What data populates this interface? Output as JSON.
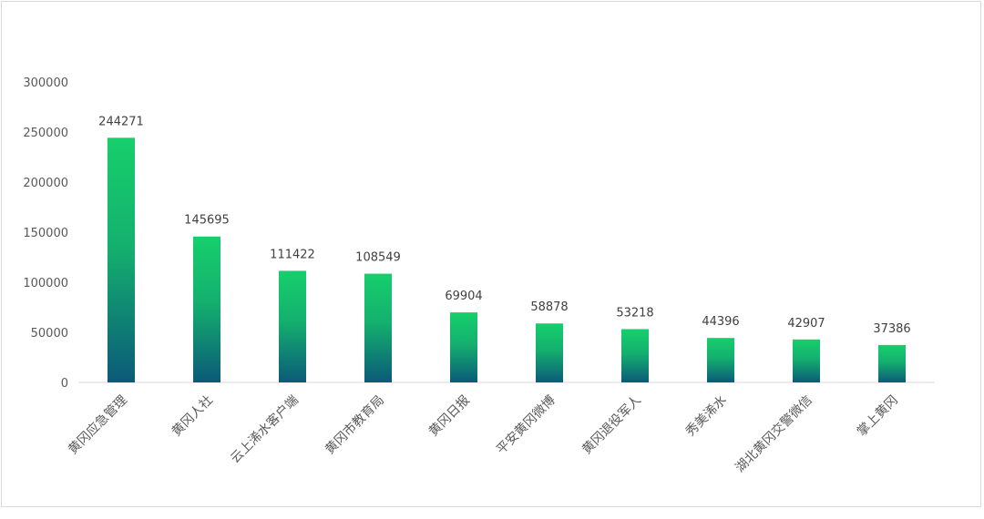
{
  "chart_data": {
    "type": "bar",
    "title": "",
    "xlabel": "",
    "ylabel": "",
    "categories": [
      "黄冈应急管理",
      "黄冈人社",
      "云上浠水客户端",
      "黄冈市教育局",
      "黄冈日报",
      "平安黄冈微博",
      "黄冈退役军人",
      "秀美浠水",
      "湖北黄冈交警微信",
      "掌上黄冈"
    ],
    "values": [
      244271,
      145695,
      111422,
      108549,
      69904,
      58878,
      53218,
      44396,
      42907,
      37386
    ],
    "ylim": [
      0,
      300000
    ],
    "yticks": [
      0,
      50000,
      100000,
      150000,
      200000,
      250000,
      300000
    ],
    "grid": false,
    "legend": "none",
    "colors": {
      "bar_top": "#16cf6c",
      "bar_bottom": "#0b5a78",
      "axis": "#d9d9d9",
      "text": "#595959"
    }
  }
}
